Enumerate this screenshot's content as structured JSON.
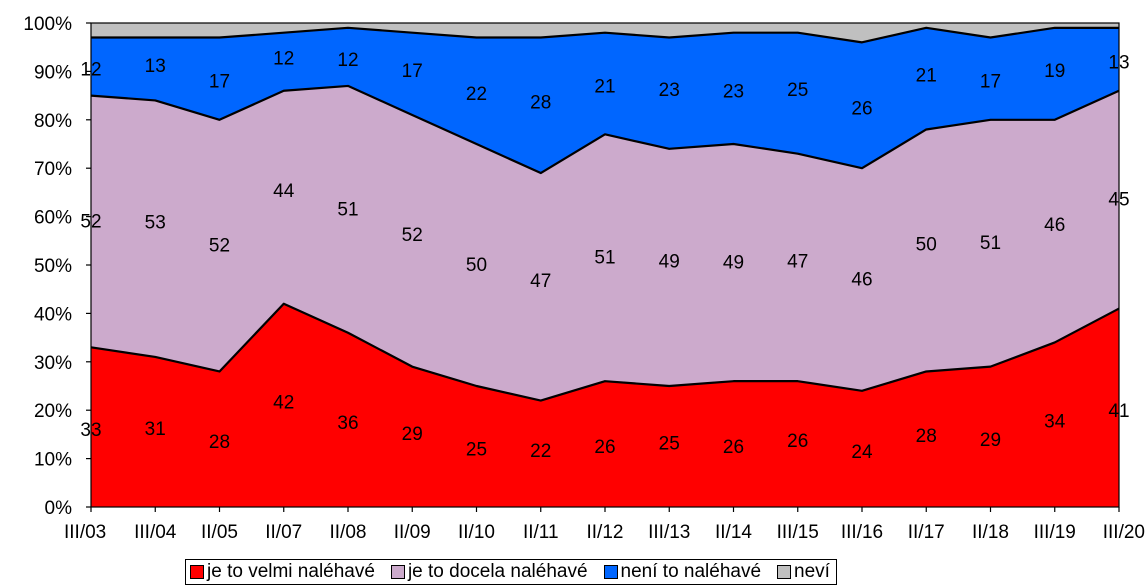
{
  "chart_data": {
    "type": "area",
    "stacked": true,
    "categories": [
      "III/03",
      "III/04",
      "II/05",
      "II/07",
      "II/08",
      "II/09",
      "II/10",
      "II/11",
      "II/12",
      "III/13",
      "II/14",
      "III/15",
      "III/16",
      "II/17",
      "II/18",
      "III/19",
      "III/20"
    ],
    "y_tick_labels": [
      "0%",
      "10%",
      "20%",
      "30%",
      "40%",
      "50%",
      "60%",
      "70%",
      "80%",
      "90%",
      "100%"
    ],
    "ylim": [
      0,
      100
    ],
    "grid": false,
    "legend_position": "bottom",
    "series": [
      {
        "name": "je to velmi naléhavé",
        "color": "#ff0000",
        "values": [
          33,
          31,
          28,
          42,
          36,
          29,
          25,
          22,
          26,
          25,
          26,
          26,
          24,
          28,
          29,
          34,
          41
        ]
      },
      {
        "name": "je to docela naléhavé",
        "color": "#ccaacc",
        "values": [
          52,
          53,
          52,
          44,
          51,
          52,
          50,
          47,
          51,
          49,
          49,
          47,
          46,
          50,
          51,
          46,
          45
        ]
      },
      {
        "name": "není to naléhavé",
        "color": "#0066ff",
        "values": [
          12,
          13,
          17,
          12,
          12,
          17,
          22,
          28,
          21,
          23,
          23,
          25,
          26,
          21,
          17,
          19,
          13
        ]
      },
      {
        "name": "neví",
        "color": "#c0c0c0",
        "values": [
          3,
          3,
          3,
          2,
          1,
          2,
          3,
          3,
          2,
          3,
          2,
          2,
          4,
          1,
          3,
          1,
          1
        ]
      }
    ]
  }
}
